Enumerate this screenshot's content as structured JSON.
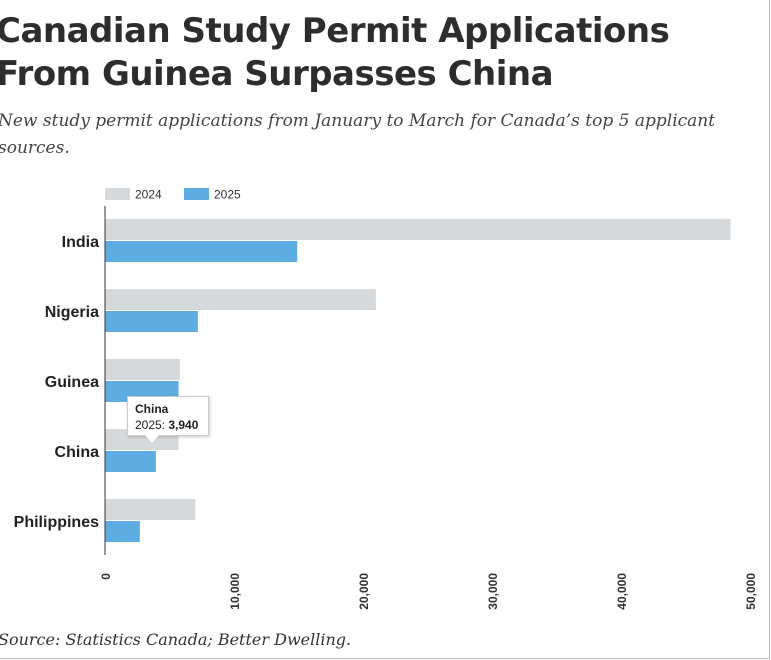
{
  "header": {
    "title_line1": "Canadian Study Permit Applications",
    "title_line2": "From Guinea Surpasses China",
    "subtitle": "New study permit applications from January to March for Canada’s top 5 applicant sources."
  },
  "footer": {
    "source": "Source: Statistics Canada; Better Dwelling."
  },
  "colors": {
    "series_2024": "#d6d9dc",
    "series_2025": "#5dade2",
    "axis": "#333333"
  },
  "tooltip": {
    "category": "China",
    "series": "2025",
    "value_text": "3,940"
  },
  "chart_data": {
    "type": "bar",
    "orientation": "horizontal",
    "title": "Canadian Study Permit Applications From Guinea Surpasses China",
    "subtitle": "New study permit applications from January to March for Canada’s top 5 applicant sources.",
    "categories": [
      "India",
      "Nigeria",
      "Guinea",
      "China",
      "Philippines"
    ],
    "series": [
      {
        "name": "2024",
        "values": [
          48500,
          21000,
          5800,
          5700,
          7000
        ]
      },
      {
        "name": "2025",
        "values": [
          14900,
          7200,
          5700,
          3940,
          2700
        ]
      }
    ],
    "xlim": [
      0,
      50000
    ],
    "ticks": [
      0,
      10000,
      20000,
      30000,
      40000,
      50000
    ],
    "tick_labels": [
      "0",
      "10,000",
      "20,000",
      "30,000",
      "40,000",
      "50,000"
    ],
    "xlabel": "",
    "ylabel": "",
    "legend_position": "top-left",
    "grid": false
  }
}
